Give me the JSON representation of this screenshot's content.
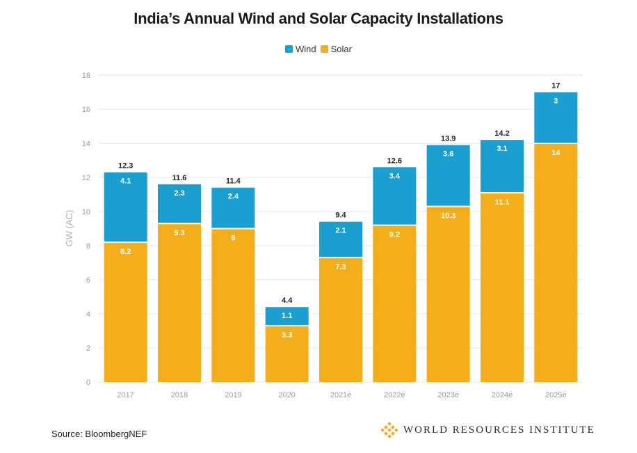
{
  "title": "India’s Annual Wind and Solar Capacity Installations",
  "source": "Source: BloombergNEF",
  "logo_text": "WORLD RESOURCES INSTITUTE",
  "colors": {
    "wind": "#1a9fd0",
    "solar": "#f5ae1b",
    "grid": "#e3e3e3",
    "axis_text": "#9a9a9a"
  },
  "chart_data": {
    "type": "bar",
    "stacked": true,
    "title": "India’s Annual Wind and Solar Capacity Installations",
    "ylabel": "GW (AC)",
    "xlabel": "",
    "ylim": [
      0,
      18
    ],
    "yticks": [
      0,
      2,
      4,
      6,
      8,
      10,
      12,
      14,
      16,
      18
    ],
    "categories": [
      "2017",
      "2018",
      "2019",
      "2020",
      "2021e",
      "2022e",
      "2023e",
      "2024e",
      "2025e"
    ],
    "series": [
      {
        "name": "Solar",
        "values": [
          8.2,
          9.3,
          9,
          3.3,
          7.3,
          9.2,
          10.3,
          11.1,
          14
        ]
      },
      {
        "name": "Wind",
        "values": [
          4.1,
          2.3,
          2.4,
          1.1,
          2.1,
          3.4,
          3.6,
          3.1,
          3
        ]
      }
    ],
    "totals": [
      12.3,
      11.6,
      11.4,
      4.4,
      9.4,
      12.6,
      13.9,
      14.2,
      17
    ],
    "legend": "top-center",
    "legend_order": [
      "Wind",
      "Solar"
    ],
    "grid": true
  }
}
